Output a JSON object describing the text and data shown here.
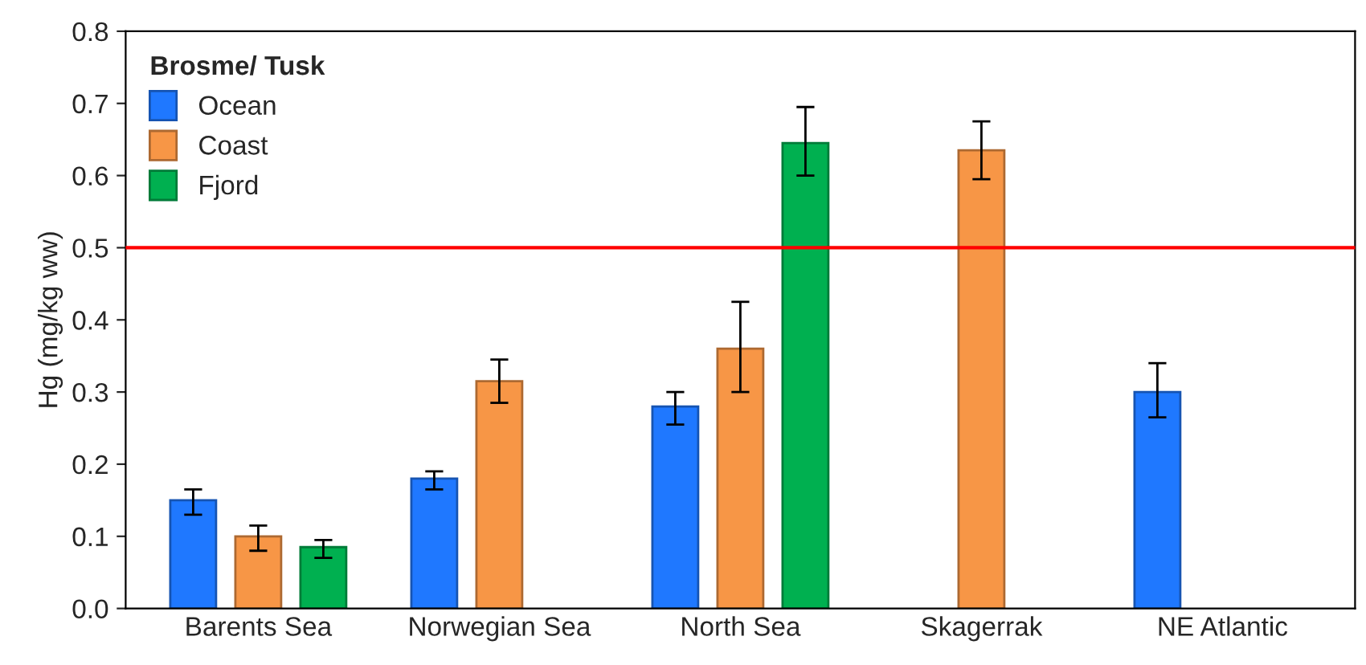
{
  "chart_data": {
    "type": "bar",
    "ylabel": "Hg (mg/kg ww)",
    "legend_title": "Brosme/ Tusk",
    "legend": "top left",
    "grid": false,
    "categories": [
      "Barents Sea",
      "Norwegian Sea",
      "North Sea",
      "Skagerrak",
      "NE Atlantic"
    ],
    "series": [
      {
        "name": "Ocean",
        "color": "#1f78ff",
        "values": [
          0.15,
          0.18,
          0.28,
          null,
          0.3
        ],
        "errors": [
          [
            0.13,
            0.165
          ],
          [
            0.165,
            0.19
          ],
          [
            0.255,
            0.3
          ],
          null,
          [
            0.265,
            0.34
          ]
        ]
      },
      {
        "name": "Coast",
        "color": "#f79646",
        "values": [
          0.1,
          0.315,
          0.36,
          0.635,
          null
        ],
        "errors": [
          [
            0.08,
            0.115
          ],
          [
            0.285,
            0.345
          ],
          [
            0.3,
            0.425
          ],
          [
            0.595,
            0.675
          ],
          null
        ]
      },
      {
        "name": "Fjord",
        "color": "#00b050",
        "values": [
          0.085,
          null,
          0.645,
          null,
          null
        ],
        "errors": [
          [
            0.07,
            0.095
          ],
          null,
          [
            0.6,
            0.695
          ],
          null,
          null
        ]
      }
    ],
    "ylim": [
      0,
      0.8
    ],
    "yticks": [
      {
        "value": 0,
        "label": "0.0"
      },
      {
        "value": 0.1,
        "label": "0.1"
      },
      {
        "value": 0.2,
        "label": "0.2"
      },
      {
        "value": 0.3,
        "label": "0.3"
      },
      {
        "value": 0.4,
        "label": "0.4"
      },
      {
        "value": 0.5,
        "label": "0.5"
      },
      {
        "value": 0.6,
        "label": "0.6"
      },
      {
        "value": 0.7,
        "label": "0.7"
      },
      {
        "value": 0.8,
        "label": "0.8"
      }
    ],
    "ref_lines": [
      {
        "axis": "y",
        "value": 0.5,
        "color": "#ff0000"
      }
    ]
  }
}
